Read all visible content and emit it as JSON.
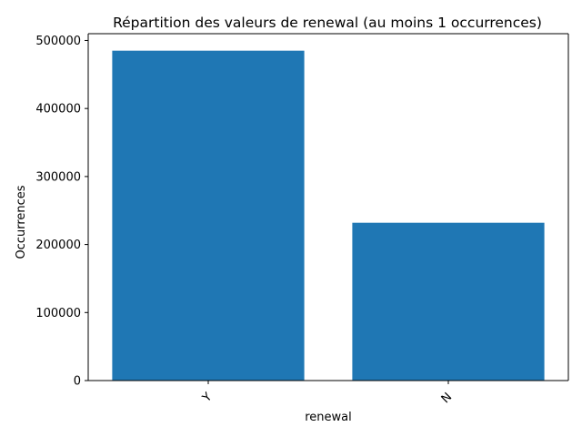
{
  "chart_data": {
    "type": "bar",
    "title": "Répartition des valeurs de renewal (au moins 1 occurrences)",
    "xlabel": "renewal",
    "ylabel": "Occurrences",
    "categories": [
      "Y",
      "N"
    ],
    "values": [
      485000,
      232000
    ],
    "ylim": [
      0,
      510000
    ],
    "yticks": [
      0,
      100000,
      200000,
      300000,
      400000,
      500000
    ],
    "ytick_labels": [
      "0",
      "100000",
      "200000",
      "300000",
      "400000",
      "500000"
    ],
    "bar_color": "#1f77b4",
    "grid": false,
    "legend": "none"
  }
}
